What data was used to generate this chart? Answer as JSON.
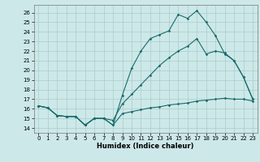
{
  "xlabel": "Humidex (Indice chaleur)",
  "xlim": [
    -0.5,
    23.5
  ],
  "ylim": [
    13.5,
    26.8
  ],
  "xticks": [
    0,
    1,
    2,
    3,
    4,
    5,
    6,
    7,
    8,
    9,
    10,
    11,
    12,
    13,
    14,
    15,
    16,
    17,
    18,
    19,
    20,
    21,
    22,
    23
  ],
  "yticks": [
    14,
    15,
    16,
    17,
    18,
    19,
    20,
    21,
    22,
    23,
    24,
    25,
    26
  ],
  "bg_color": "#cde8e8",
  "grid_color": "#aacccc",
  "line_color": "#1a6b6b",
  "line1_x": [
    0,
    1,
    2,
    3,
    4,
    5,
    6,
    7,
    8,
    9,
    10,
    11,
    12,
    13,
    14,
    15,
    16,
    17,
    18,
    19,
    20,
    21,
    22,
    23
  ],
  "line1_y": [
    16.3,
    16.1,
    15.3,
    15.2,
    15.2,
    14.3,
    15.0,
    15.0,
    14.3,
    17.4,
    20.2,
    22.0,
    23.3,
    23.7,
    24.1,
    25.8,
    25.4,
    26.2,
    25.0,
    23.6,
    21.7,
    21.0,
    19.3,
    17.0
  ],
  "line2_x": [
    0,
    1,
    2,
    3,
    4,
    5,
    6,
    7,
    8,
    9,
    10,
    11,
    12,
    13,
    14,
    15,
    16,
    17,
    18,
    19,
    20,
    21,
    22,
    23
  ],
  "line2_y": [
    16.3,
    16.1,
    15.3,
    15.2,
    15.2,
    14.3,
    15.0,
    15.0,
    14.3,
    15.5,
    15.7,
    15.9,
    16.1,
    16.2,
    16.4,
    16.5,
    16.6,
    16.8,
    16.9,
    17.0,
    17.1,
    17.0,
    17.0,
    16.8
  ],
  "line3_x": [
    0,
    1,
    2,
    3,
    4,
    5,
    6,
    7,
    8,
    9,
    10,
    11,
    12,
    13,
    14,
    15,
    16,
    17,
    18,
    19,
    20,
    21,
    22,
    23
  ],
  "line3_y": [
    16.3,
    16.1,
    15.3,
    15.2,
    15.2,
    14.3,
    15.0,
    15.0,
    14.8,
    16.5,
    17.5,
    18.5,
    19.5,
    20.5,
    21.3,
    22.0,
    22.5,
    23.3,
    21.7,
    22.0,
    21.8,
    21.0,
    19.3,
    17.0
  ]
}
